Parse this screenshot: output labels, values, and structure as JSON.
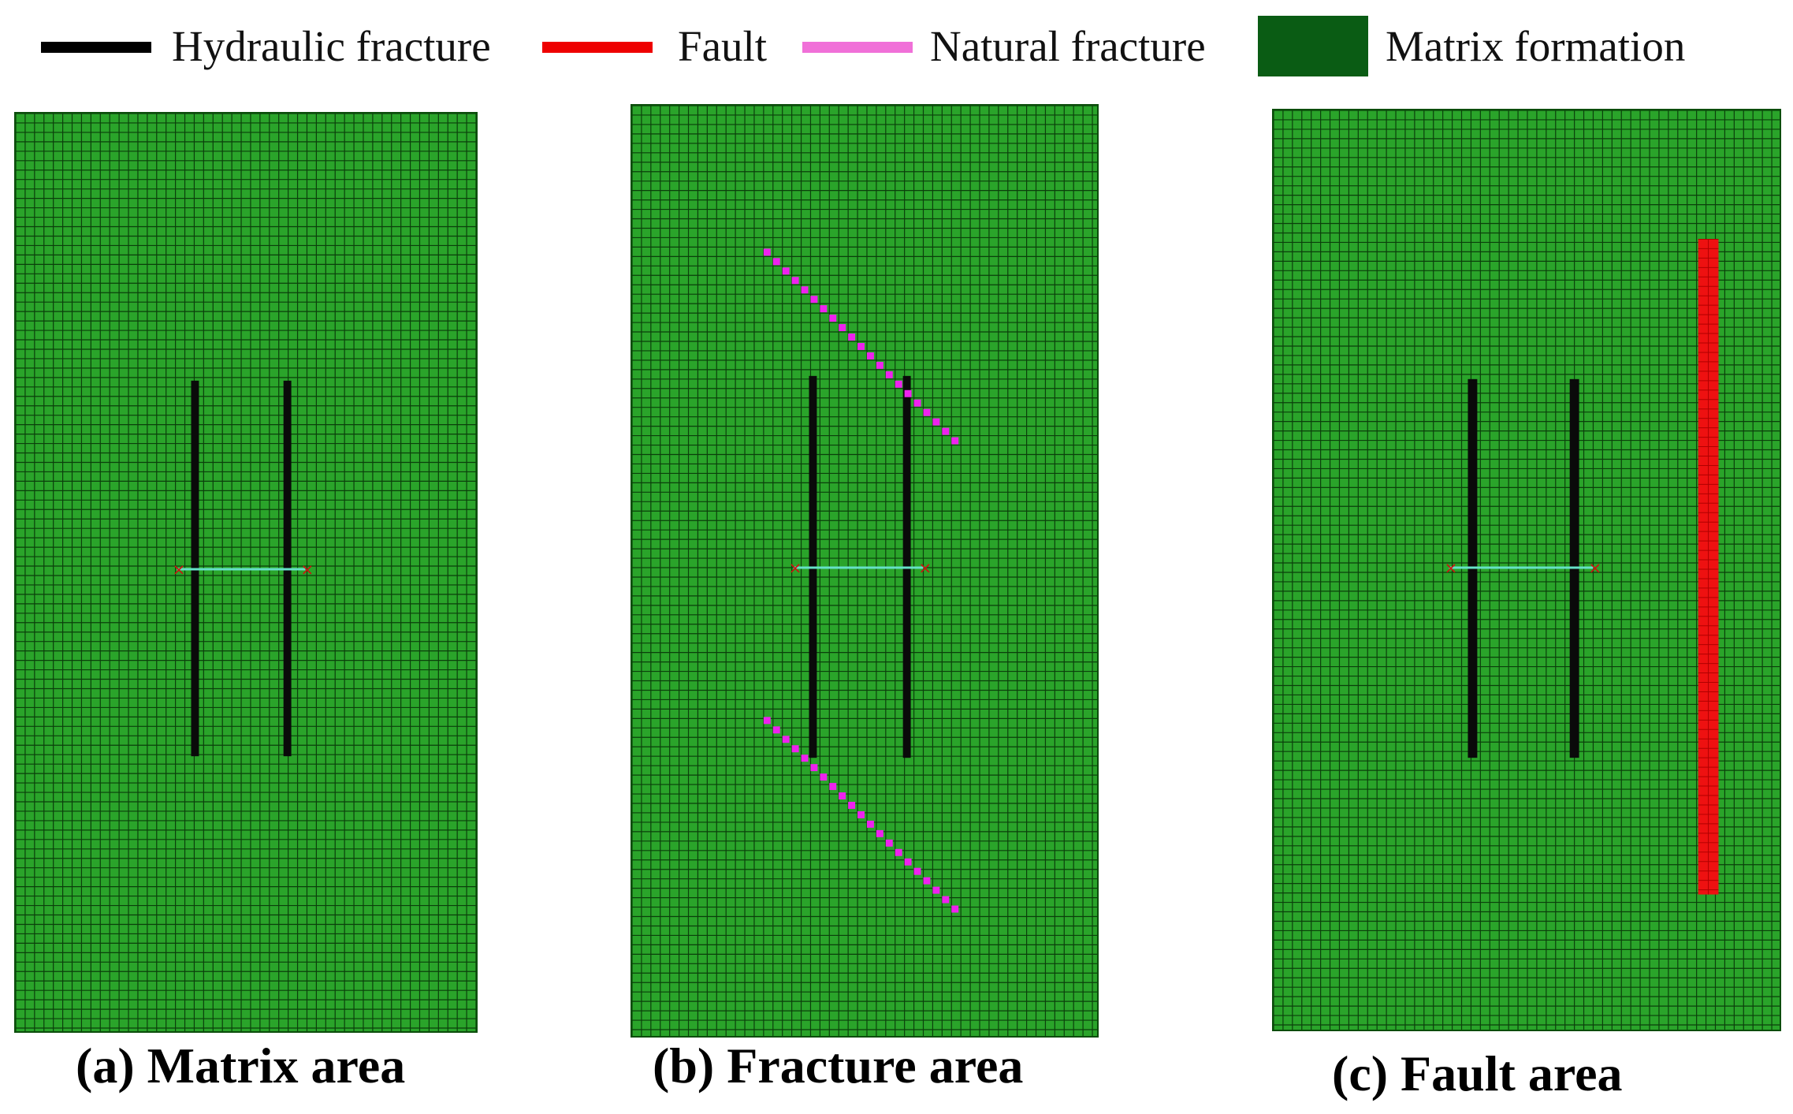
{
  "legend": {
    "items": [
      {
        "label": "Hydraulic fracture",
        "kind": "line",
        "color": "#000000"
      },
      {
        "label": "Fault",
        "kind": "line",
        "color": "#ee0000"
      },
      {
        "label": "Natural fracture",
        "kind": "line",
        "color": "#f070d8"
      },
      {
        "label": "Matrix formation",
        "kind": "box",
        "color": "#0a5c14"
      }
    ]
  },
  "colors": {
    "matrix_fill": "#2aa42a",
    "grid_line": "#0b3f0b",
    "hydraulic": "#0a0a0a",
    "fault": "#ee1111",
    "natural": "#ee22ee",
    "well": "#66e0c8",
    "well_marker": "#d01010"
  },
  "panels": [
    {
      "caption": "(a) Matrix area",
      "features": [
        "hydraulic-fractures",
        "well"
      ]
    },
    {
      "caption": "(b) Fracture area",
      "features": [
        "hydraulic-fractures",
        "well",
        "natural-fractures"
      ]
    },
    {
      "caption": "(c) Fault area",
      "features": [
        "hydraulic-fractures",
        "well",
        "fault"
      ]
    }
  ]
}
